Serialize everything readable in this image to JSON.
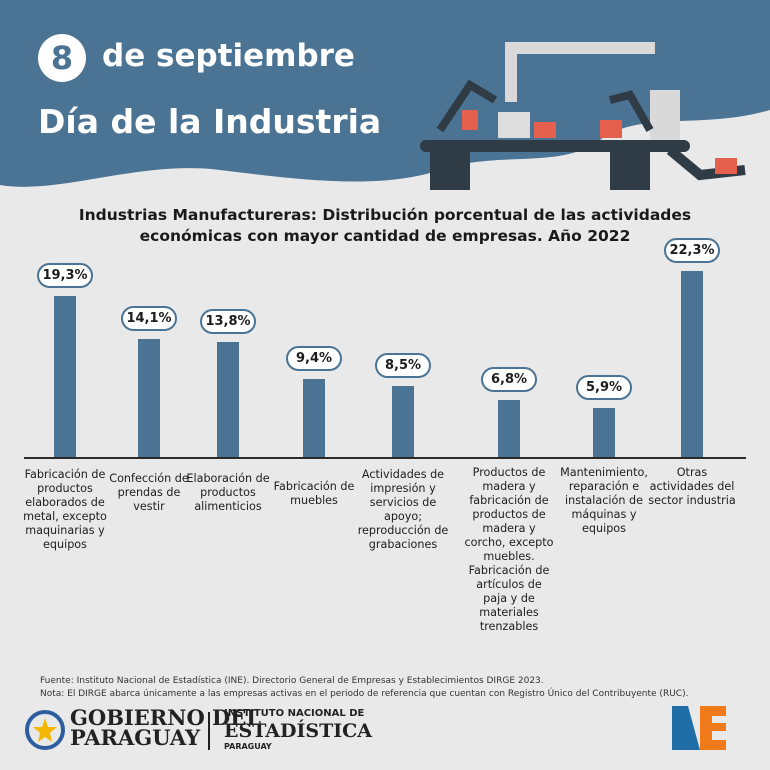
{
  "header": {
    "day_number": "8",
    "date_text": "de septiembre",
    "title": "Día de la Industria"
  },
  "chart_data": {
    "type": "bar",
    "title": "Industrias Manufactureras: Distribución porcentual de las actividades económicas con mayor cantidad de empresas. Año 2022",
    "categories": [
      "Fabricación de productos elaborados de metal, excepto maquinarias y equipos",
      "Confección de prendas de vestir",
      "Elaboración de productos alimenticios",
      "Fabricación de muebles",
      "Actividades de impresión y servicios de apoyo; reproducción de grabaciones",
      "Productos de madera y fabricación de productos de madera y corcho, excepto muebles. Fabricación de artículos de paja y de materiales trenzables",
      "Mantenimiento, reparación e instalación de máquinas y equipos",
      "Otras actividades del sector industria"
    ],
    "values": [
      19.3,
      14.1,
      13.8,
      9.4,
      8.5,
      6.8,
      5.9,
      22.3
    ],
    "labels": [
      "19,3%",
      "14,1%",
      "13,8%",
      "9,4%",
      "8,5%",
      "6,8%",
      "5,9%",
      "22,3%"
    ],
    "xlabel": "",
    "ylabel": "",
    "ylim": [
      0,
      23
    ],
    "grid": false,
    "color": "#4a7394"
  },
  "footer": {
    "source": "Fuente: Instituto Nacional de Estadística (INE). Directorio General de Empresas y Establecimientos DIRGE 2023.",
    "note": "Nota: El DIRGE abarca únicamente a las empresas activas en el periodo de referencia que cuentan con Registro Único del Contribuyente (RUC).",
    "gob_line1": "GOBIERNO DEL",
    "gob_line2": "PARAGUAY",
    "ine_line1": "INSTITUTO NACIONAL DE",
    "ine_line2": "ESTADÍSTICA",
    "ine_line3": "PARAGUAY",
    "ine_logo": "INE"
  }
}
